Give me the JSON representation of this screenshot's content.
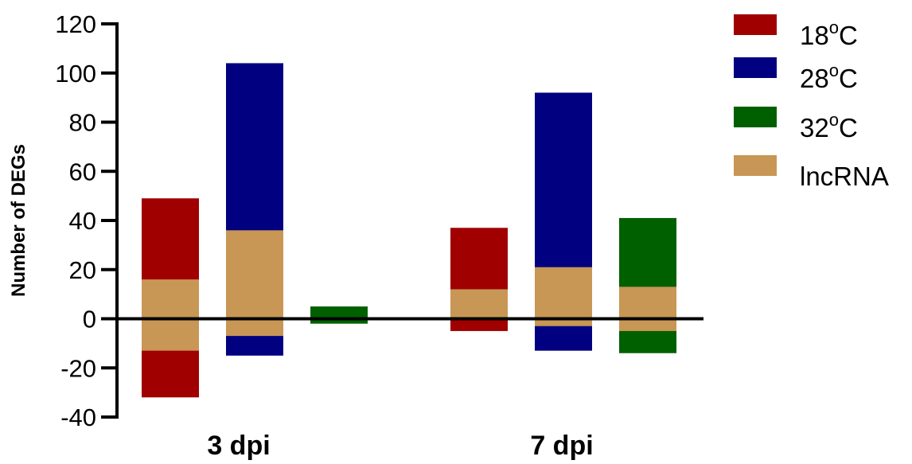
{
  "chart_data": {
    "type": "bar",
    "subtype": "stacked-diverging",
    "ylabel": "Number of DEGs",
    "xlabel": "",
    "ylim": [
      -40,
      120
    ],
    "yticks": [
      -40,
      -20,
      0,
      20,
      40,
      60,
      80,
      100,
      120
    ],
    "categories": [
      "3 dpi",
      "7 dpi"
    ],
    "series": [
      {
        "name": "18°C",
        "color": "#a00000",
        "up": [
          49,
          37
        ],
        "down": [
          -32,
          -5
        ]
      },
      {
        "name": "28°C",
        "color": "#000080",
        "up": [
          104,
          92
        ],
        "down": [
          -15,
          -13
        ]
      },
      {
        "name": "32°C",
        "color": "#006000",
        "up": [
          5,
          41
        ],
        "down": [
          -2,
          -14
        ]
      }
    ],
    "lncrna": {
      "name": "lncRNA",
      "color": "#c89655",
      "up": [
        [
          16,
          36,
          0
        ],
        [
          12,
          21,
          13
        ]
      ],
      "down": [
        [
          -13,
          -7,
          0
        ],
        [
          0,
          -3,
          -5
        ]
      ]
    },
    "legend": {
      "position": "right",
      "entries": [
        {
          "base": "18",
          "sup": "o",
          "unit": "C",
          "color": "#a00000"
        },
        {
          "base": "28",
          "sup": "o",
          "unit": "C",
          "color": "#000080"
        },
        {
          "base": "32",
          "sup": "o",
          "unit": "C",
          "color": "#006000"
        },
        {
          "base": "lncRNA",
          "sup": "",
          "unit": "",
          "color": "#c89655"
        }
      ]
    }
  }
}
